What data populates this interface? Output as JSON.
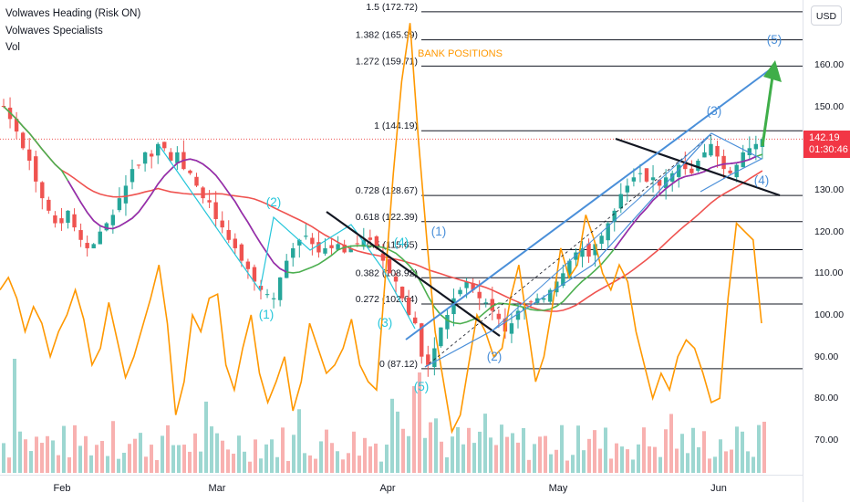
{
  "legend": {
    "line1": "Volwaves Heading (Risk ON)",
    "line2": "Volwaves Specialists",
    "line3": "Vol"
  },
  "axis": {
    "currency_label": "USD",
    "ticks": [
      "160.00",
      "150.00",
      "140.00",
      "130.00",
      "120.00",
      "110.00",
      "100.00",
      "90.00",
      "80.00",
      "70.00"
    ]
  },
  "last_price": {
    "value": "142.19",
    "timer": "01:30:46",
    "color": "#f23645"
  },
  "x_ticks": [
    "Feb",
    "Mar",
    "Apr",
    "May",
    "Jun"
  ],
  "fib_levels": [
    {
      "label": "1.5 (172.72)",
      "value": 172.72
    },
    {
      "label": "1.382 (165.99)",
      "value": 165.99
    },
    {
      "label": "1.272 (159.71)",
      "value": 159.71
    },
    {
      "label": "1 (144.19)",
      "value": 144.19
    },
    {
      "label": "0.728 (128.67)",
      "value": 128.67
    },
    {
      "label": "0.618 (122.39)",
      "value": 122.39
    },
    {
      "label": "0.5 (115.65)",
      "value": 115.65
    },
    {
      "label": "0.382 (108.92)",
      "value": 108.92
    },
    {
      "label": "0.272 (102.64)",
      "value": 102.64
    },
    {
      "label": "0 (87.12)",
      "value": 87.12
    }
  ],
  "annotations": {
    "bank_positions": "BANK POSITIONS",
    "wave_labels": [
      "(1)",
      "(2)",
      "(3)",
      "(4)",
      "(5)",
      "(1)",
      "(2)",
      "(3)",
      "(4)",
      "(5)"
    ]
  },
  "colors": {
    "up": "#26a69a",
    "down": "#ef5350",
    "ma_red": "#ef5350",
    "ma_green": "#4caf50",
    "ma_purple": "#9c27b0",
    "orange": "#ff9800",
    "blue": "#2962ff",
    "teal": "#26c6da",
    "channel_blue": "#4a8fd9",
    "target_green": "#3fae49"
  },
  "chart_data": {
    "type": "candlestick",
    "ylim": [
      62,
      178
    ],
    "y_ticks": [
      160,
      150,
      140,
      130,
      120,
      110,
      100,
      90,
      80,
      70
    ],
    "x_categories": [
      "Feb",
      "Mar",
      "Apr",
      "May",
      "Jun"
    ],
    "last_price": 142.19,
    "bank_positions_series": [
      106,
      109,
      104,
      96,
      102,
      98,
      90,
      96,
      100,
      106,
      99,
      88,
      92,
      103,
      94,
      85,
      90,
      97,
      104,
      112,
      98,
      76,
      84,
      100,
      96,
      104,
      105,
      88,
      82,
      92,
      100,
      86,
      79,
      84,
      90,
      77,
      84,
      98,
      92,
      86,
      88,
      92,
      99,
      88,
      84,
      82,
      108,
      134,
      156,
      170,
      142,
      118,
      96,
      84,
      72,
      76,
      88,
      100,
      96,
      90,
      92,
      104,
      112,
      98,
      84,
      90,
      102,
      116,
      109,
      112,
      124,
      118,
      110,
      106,
      112,
      108,
      96,
      88,
      80,
      86,
      82,
      90,
      94,
      92,
      86,
      79,
      80,
      104,
      122,
      120,
      118,
      98
    ]
  }
}
